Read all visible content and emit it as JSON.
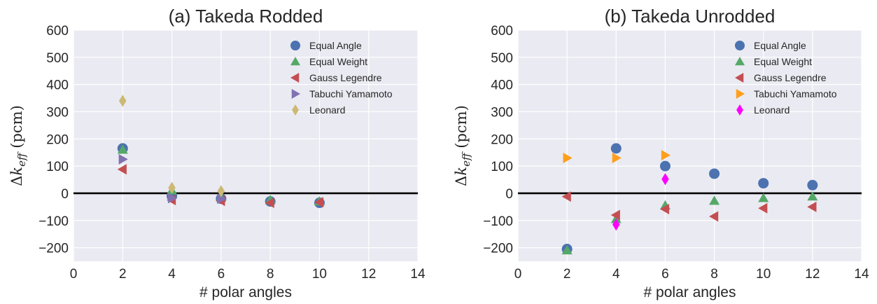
{
  "chart_data": [
    {
      "type": "scatter",
      "title": "(a) Takeda Rodded",
      "xlabel": "# polar angles",
      "ylabel": "Δk_eff (pcm)",
      "xlim": [
        0,
        14
      ],
      "ylim": [
        -250,
        600
      ],
      "xticks": [
        0,
        2,
        4,
        6,
        8,
        10,
        12,
        14
      ],
      "yticks": [
        -200,
        -100,
        0,
        100,
        200,
        300,
        400,
        500,
        600
      ],
      "grid": true,
      "zero_line": true,
      "legend_position": "top-right",
      "series": [
        {
          "name": "Equal Angle",
          "marker": "circle",
          "color": "#4C72B0",
          "x": [
            2,
            4,
            6,
            8,
            10
          ],
          "y": [
            165,
            -10,
            -20,
            -30,
            -35
          ]
        },
        {
          "name": "Equal Weight",
          "marker": "triangle-up",
          "color": "#55A868",
          "x": [
            2,
            4,
            6,
            8,
            10
          ],
          "y": [
            160,
            10,
            -15,
            -25,
            -30
          ]
        },
        {
          "name": "Gauss Legendre",
          "marker": "triangle-left",
          "color": "#C44E52",
          "x": [
            2,
            4,
            6,
            8,
            10
          ],
          "y": [
            88,
            -25,
            -28,
            -35,
            -33
          ]
        },
        {
          "name": "Tabuchi Yamamoto",
          "marker": "triangle-right",
          "color": "#8172B2",
          "x": [
            2,
            4,
            6
          ],
          "y": [
            125,
            -18,
            -20
          ]
        },
        {
          "name": "Leonard",
          "marker": "diamond",
          "color": "#CCB974",
          "x": [
            2,
            4,
            6
          ],
          "y": [
            340,
            20,
            8
          ]
        }
      ]
    },
    {
      "type": "scatter",
      "title": "(b) Takeda Unrodded",
      "xlabel": "# polar angles",
      "ylabel": "Δk_eff (pcm)",
      "xlim": [
        0,
        14
      ],
      "ylim": [
        -250,
        600
      ],
      "xticks": [
        0,
        2,
        4,
        6,
        8,
        10,
        12,
        14
      ],
      "yticks": [
        -200,
        -100,
        0,
        100,
        200,
        300,
        400,
        500,
        600
      ],
      "grid": true,
      "zero_line": true,
      "legend_position": "top-right",
      "series": [
        {
          "name": "Equal Angle",
          "marker": "circle",
          "color": "#4C72B0",
          "x": [
            2,
            4,
            6,
            8,
            10,
            12
          ],
          "y": [
            -205,
            165,
            100,
            72,
            37,
            30
          ]
        },
        {
          "name": "Equal Weight",
          "marker": "triangle-up",
          "color": "#55A868",
          "x": [
            2,
            4,
            6,
            8,
            10,
            12
          ],
          "y": [
            -210,
            -95,
            -45,
            -28,
            -18,
            -12
          ]
        },
        {
          "name": "Gauss Legendre",
          "marker": "triangle-left",
          "color": "#C44E52",
          "x": [
            2,
            4,
            6,
            8,
            10,
            12
          ],
          "y": [
            -12,
            -80,
            -58,
            -85,
            -55,
            -50
          ]
        },
        {
          "name": "Tabuchi Yamamoto",
          "marker": "triangle-right",
          "color": "#FF9F1C",
          "x": [
            2,
            4,
            6
          ],
          "y": [
            130,
            130,
            140
          ]
        },
        {
          "name": "Leonard",
          "marker": "diamond",
          "color": "#FF00FF",
          "x": [
            4,
            6
          ],
          "y": [
            -115,
            52
          ]
        }
      ]
    }
  ]
}
